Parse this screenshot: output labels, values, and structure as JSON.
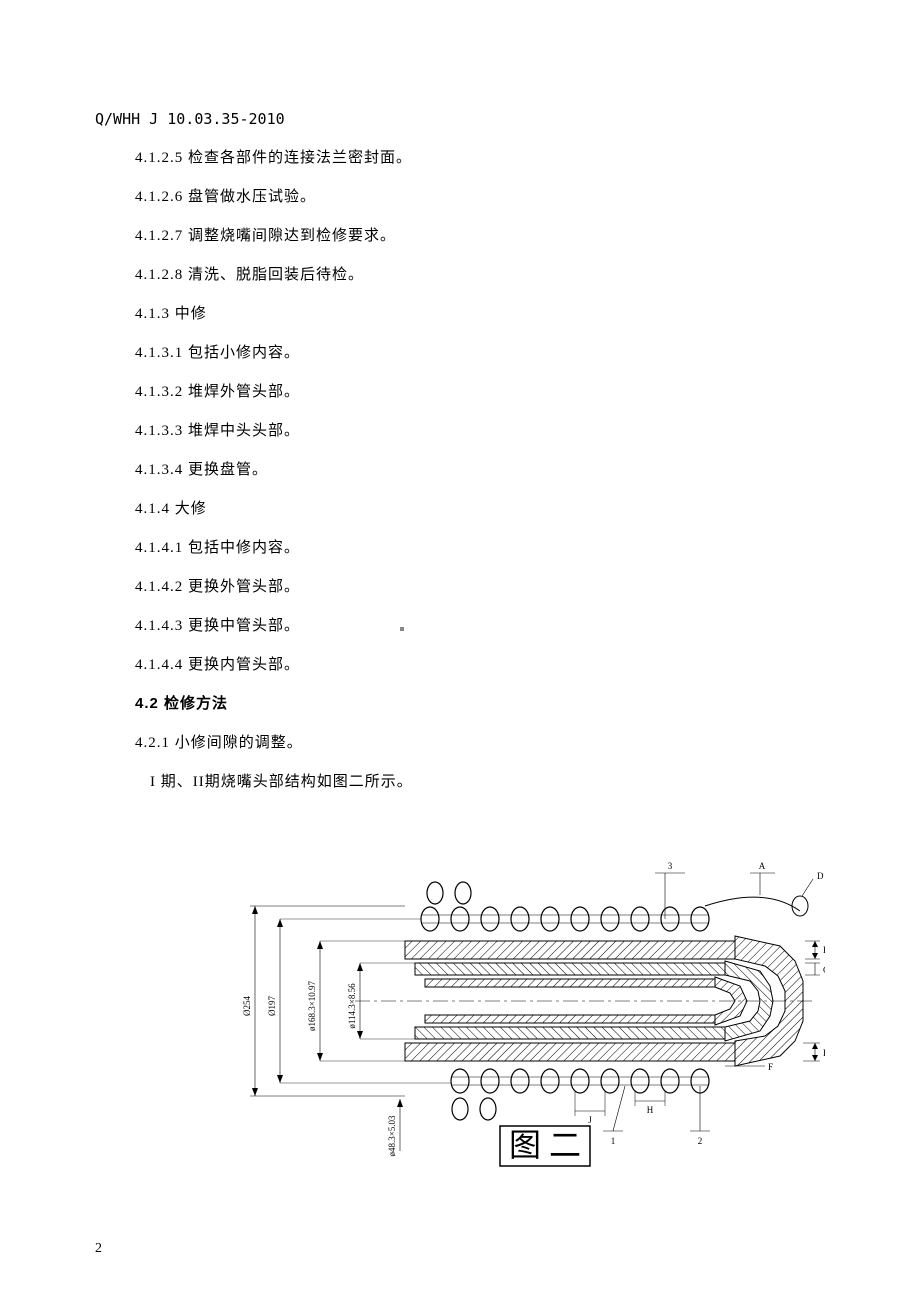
{
  "doc_code": "Q/WHH J 10.03.35-2010",
  "lines": [
    {
      "cls": "item-line",
      "text": "4.1.2.5 检查各部件的连接法兰密封面。"
    },
    {
      "cls": "item-line",
      "text": "4.1.2.6 盘管做水压试验。"
    },
    {
      "cls": "item-line",
      "text": "4.1.2.7 调整烧嘴间隙达到检修要求。"
    },
    {
      "cls": "item-line",
      "text": "4.1.2.8 清洗、脱脂回装后待检。"
    },
    {
      "cls": "item-line",
      "text": "4.1.3 中修"
    },
    {
      "cls": "item-line",
      "text": "4.1.3.1 包括小修内容。"
    },
    {
      "cls": "item-line",
      "text": "4.1.3.2 堆焊外管头部。"
    },
    {
      "cls": "item-line",
      "text": "4.1.3.3 堆焊中头头部。"
    },
    {
      "cls": "item-line",
      "text": "4.1.3.4 更换盘管。"
    },
    {
      "cls": "item-line",
      "text": "4.1.4 大修"
    },
    {
      "cls": "item-line",
      "text": "4.1.4.1 包括中修内容。"
    },
    {
      "cls": "item-line",
      "text": "4.1.4.2 更换外管头部。"
    },
    {
      "cls": "item-line",
      "text": "4.1.4.3 更换中管头部。"
    },
    {
      "cls": "item-line",
      "text": "4.1.4.4 更换内管头部。"
    },
    {
      "cls": "section-heading",
      "text": "4.2 检修方法"
    },
    {
      "cls": "item-line",
      "text": "4.2.1 小修间隙的调整。"
    },
    {
      "cls": "indent-line",
      "text": "I 期、II期烧嘴头部结构如图二所示。"
    }
  ],
  "figure": {
    "label": "图 二",
    "dimensions": {
      "d1": "Ø254",
      "d2": "Ø197",
      "d3": "ø168.3×10.97",
      "d4": "ø114.3×8.56",
      "d5": "ø48.3×5.03"
    },
    "callouts": {
      "n1": "1",
      "n2": "2",
      "n3": "3"
    },
    "letters": {
      "A": "A",
      "B": "B",
      "C": "C",
      "D": "D",
      "E": "E",
      "F": "F",
      "H": "H",
      "J": "J"
    },
    "colors": {
      "line": "#000000",
      "hatch": "#000000",
      "bg": "#ffffff"
    }
  },
  "page_number": "2"
}
